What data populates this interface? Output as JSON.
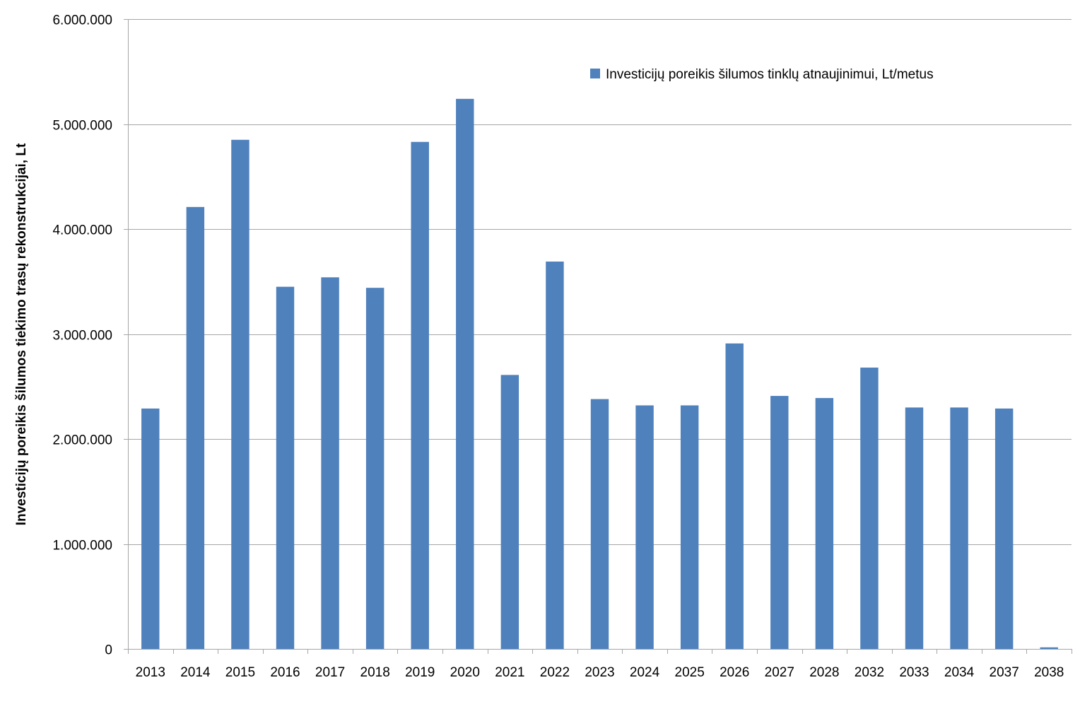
{
  "chart_data": {
    "type": "bar",
    "title": "",
    "xlabel": "",
    "ylabel": "Investicijų poreikis šilumos tiekimo trasų rekonstrukcijai, Lt",
    "categories": [
      "2013",
      "2014",
      "2015",
      "2016",
      "2017",
      "2018",
      "2019",
      "2020",
      "2021",
      "2022",
      "2023",
      "2024",
      "2025",
      "2026",
      "2027",
      "2028",
      "2032",
      "2033",
      "2034",
      "2037",
      "2038"
    ],
    "series": [
      {
        "name": "Investicijų poreikis šilumos tinklų atnaujinimui, Lt/metus",
        "color": "#4F81BD",
        "values": [
          2290000,
          4210000,
          4850000,
          3450000,
          3540000,
          3440000,
          4830000,
          5240000,
          2610000,
          3690000,
          2380000,
          2320000,
          2320000,
          2910000,
          2410000,
          2390000,
          2680000,
          2300000,
          2300000,
          2290000,
          15000
        ]
      }
    ],
    "ylim": [
      0,
      6000000
    ],
    "yticks": [
      0,
      1000000,
      2000000,
      3000000,
      4000000,
      5000000,
      6000000
    ],
    "ytick_labels": [
      "0",
      "1.000.000",
      "2.000.000",
      "3.000.000",
      "4.000.000",
      "5.000.000",
      "6.000.000"
    ],
    "grid": true,
    "gridline_color": "#A6A6A6",
    "legend_position": "top-right"
  }
}
